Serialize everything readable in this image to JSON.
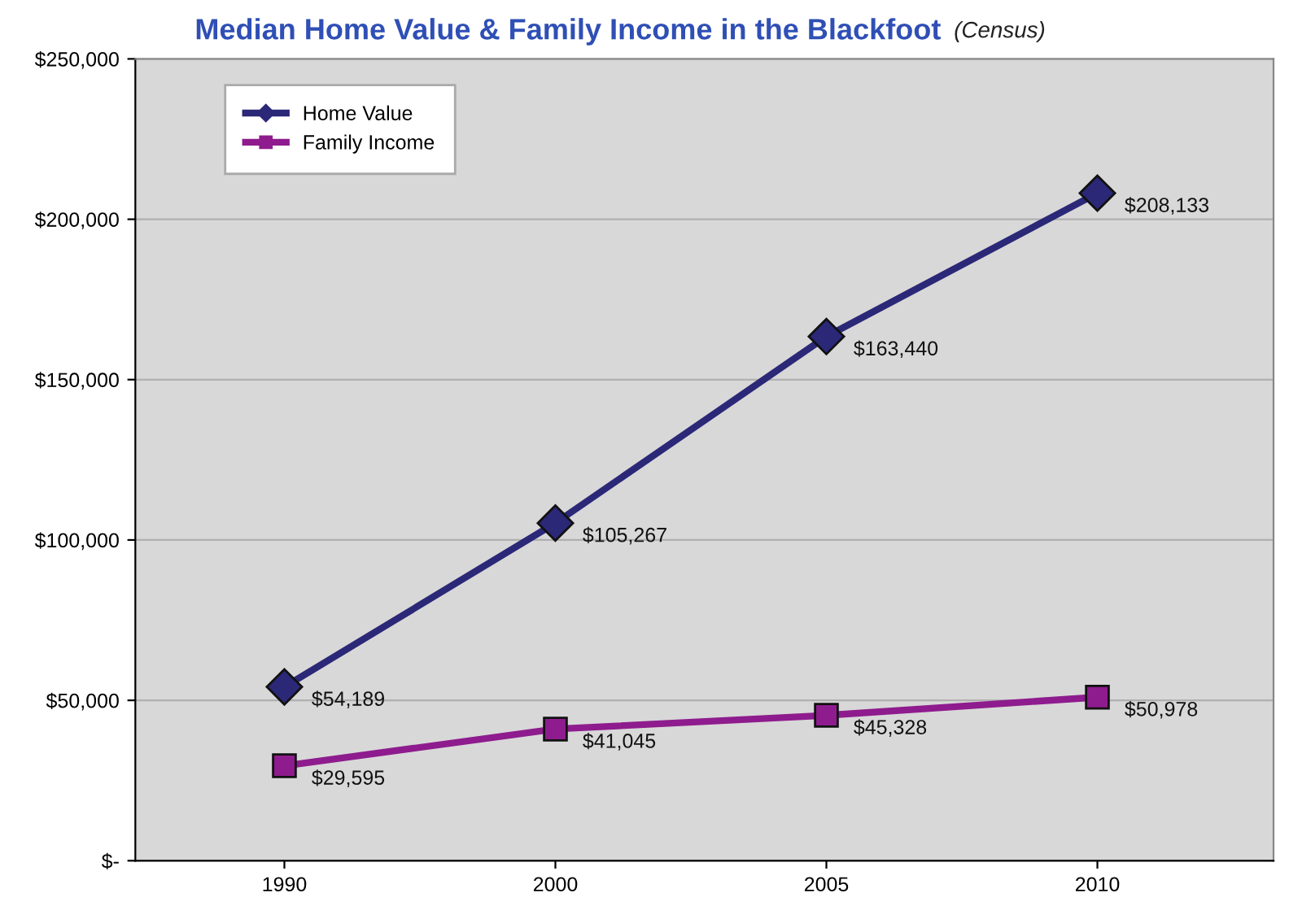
{
  "chart_data": {
    "type": "line",
    "title": "Median Home Value & Family Income in the Blackfoot",
    "subtitle": "(Census)",
    "categories": [
      "1990",
      "2000",
      "2005",
      "2010"
    ],
    "series": [
      {
        "name": "Home Value",
        "color": "#2b2878",
        "marker": "diamond",
        "values": [
          54189,
          105267,
          163440,
          208133
        ],
        "value_labels": [
          "$54,189",
          "$105,267",
          "$163,440",
          "$208,133"
        ]
      },
      {
        "name": "Family Income",
        "color": "#8e1c8e",
        "marker": "square",
        "values": [
          29595,
          41045,
          45328,
          50978
        ],
        "value_labels": [
          "$29,595",
          "$41,045",
          "$45,328",
          "$50,978"
        ]
      }
    ],
    "ylim": [
      0,
      250000
    ],
    "yticks": [
      {
        "value": 0,
        "label": "$-"
      },
      {
        "value": 50000,
        "label": "$50,000"
      },
      {
        "value": 100000,
        "label": "$100,000"
      },
      {
        "value": 150000,
        "label": "$150,000"
      },
      {
        "value": 200000,
        "label": "$200,000"
      },
      {
        "value": 250000,
        "label": "$250,000"
      }
    ],
    "grid": "y",
    "legend": "top left",
    "line_style": "solid"
  }
}
